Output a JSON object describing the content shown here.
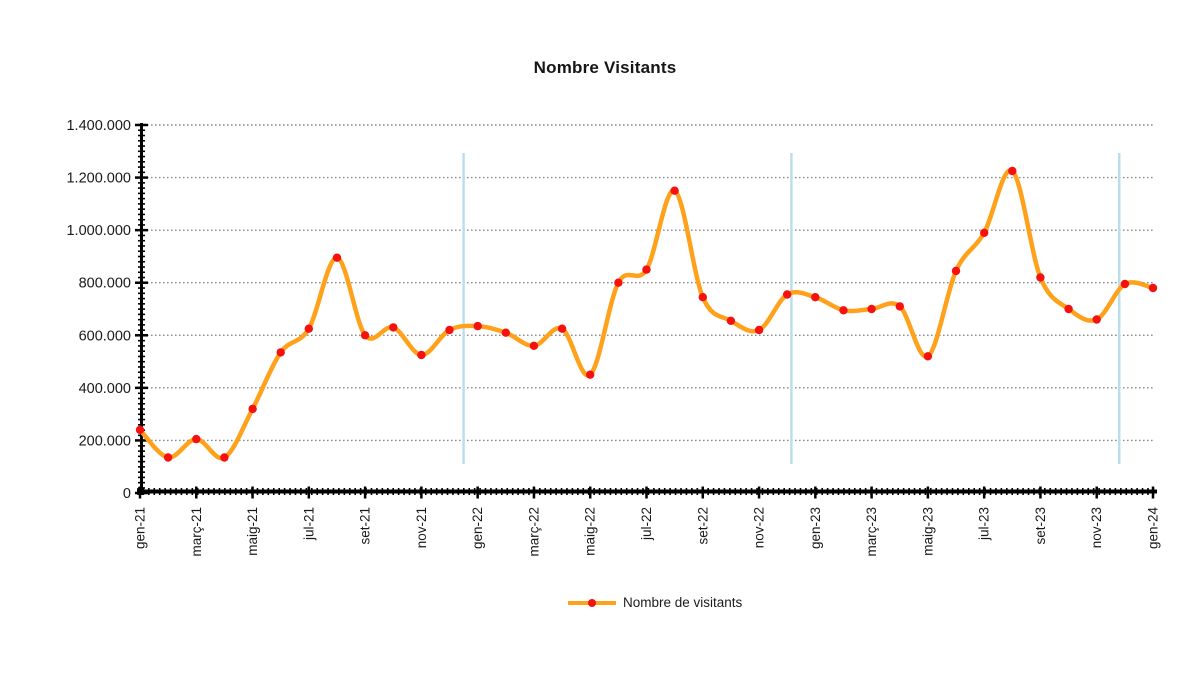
{
  "chart_data": {
    "type": "line",
    "title": "Nombre Visitants",
    "categories": [
      "gen-21",
      "feb-21",
      "març-21",
      "abr-21",
      "maig-21",
      "jun-21",
      "jul-21",
      "ago-21",
      "set-21",
      "oct-21",
      "nov-21",
      "des-21",
      "gen-22",
      "feb-22",
      "març-22",
      "abr-22",
      "maig-22",
      "jun-22",
      "jul-22",
      "ago-22",
      "set-22",
      "oct-22",
      "nov-22",
      "des-22",
      "gen-23",
      "feb-23",
      "març-23",
      "abr-23",
      "maig-23",
      "jun-23",
      "jul-23",
      "ago-23",
      "set-23",
      "oct-23",
      "nov-23",
      "des-23",
      "gen-24"
    ],
    "x_tick_labels_shown": [
      "gen-21",
      "març-21",
      "maig-21",
      "jul-21",
      "set-21",
      "nov-21",
      "gen-22",
      "març-22",
      "maig-22",
      "jul-22",
      "set-22",
      "nov-22",
      "gen-23",
      "març-23",
      "maig-23",
      "jul-23",
      "set-23",
      "nov-23",
      "gen-24"
    ],
    "series": [
      {
        "name": "Nombre de visitants",
        "values": [
          240000,
          135000,
          205000,
          135000,
          320000,
          535000,
          625000,
          895000,
          600000,
          630000,
          525000,
          620000,
          635000,
          610000,
          560000,
          625000,
          450000,
          800000,
          850000,
          1150000,
          745000,
          655000,
          620000,
          755000,
          745000,
          695000,
          700000,
          710000,
          520000,
          845000,
          990000,
          1225000,
          820000,
          700000,
          660000,
          795000,
          780000
        ]
      }
    ],
    "ylim": [
      0,
      1400000
    ],
    "ytick_step": 200000,
    "ytick_labels": [
      "0",
      "200.000",
      "400.000",
      "600.000",
      "800.000",
      "1.000.000",
      "1.200.000",
      "1.400.000"
    ],
    "grid": "horizontal-dotted",
    "legend_position": "bottom-center",
    "year_separators_at_month_index": [
      11.5,
      23.15,
      34.8
    ],
    "colors": {
      "line": "#FFA11B",
      "marker": "#F5110E",
      "year_separator": "#B9DDEC",
      "grid": "#8C8C8C",
      "axis": "#000000",
      "text": "#1A1A1A"
    }
  }
}
